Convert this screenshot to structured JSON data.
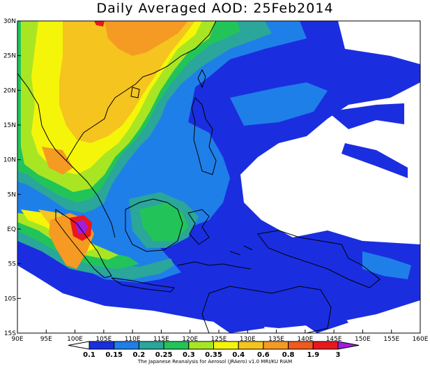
{
  "title": "Daily Averaged AOD: 25Feb2014",
  "credit": "The Japanese Reanalysis for Aerosol (JRAero) v1.0 MRI/KU RIAM",
  "lon_ticks": [
    "90E",
    "95E",
    "100E",
    "105E",
    "110E",
    "115E",
    "120E",
    "125E",
    "130E",
    "135E",
    "140E",
    "145E",
    "150E",
    "155E",
    "160E"
  ],
  "lat_ticks": [
    "30N",
    "25N",
    "20N",
    "15N",
    "10N",
    "5N",
    "EQ",
    "5S",
    "10S",
    "15S"
  ],
  "colorbar": {
    "labels": [
      "0.1",
      "0.15",
      "0.2",
      "0.25",
      "0.3",
      "0.35",
      "0.4",
      "0.6",
      "0.8",
      "1.9",
      "3"
    ],
    "colors": [
      "#ffffff",
      "#1a2ee0",
      "#1f7fe8",
      "#2aa69a",
      "#22c45a",
      "#a8e624",
      "#f5f50a",
      "#f5c41e",
      "#f59a23",
      "#f05a1e",
      "#e8181e",
      "#a01ee0"
    ]
  },
  "field_colors": {
    "blue": "#1a2ee0",
    "lightblue": "#1f7fe8",
    "teal": "#2aa69a",
    "green": "#22c45a",
    "yellowgreen": "#a8e624",
    "yellow": "#f5f50a",
    "gold": "#f5c41e",
    "orange": "#f59a23",
    "red": "#e8181e",
    "purple": "#a01ee0"
  }
}
